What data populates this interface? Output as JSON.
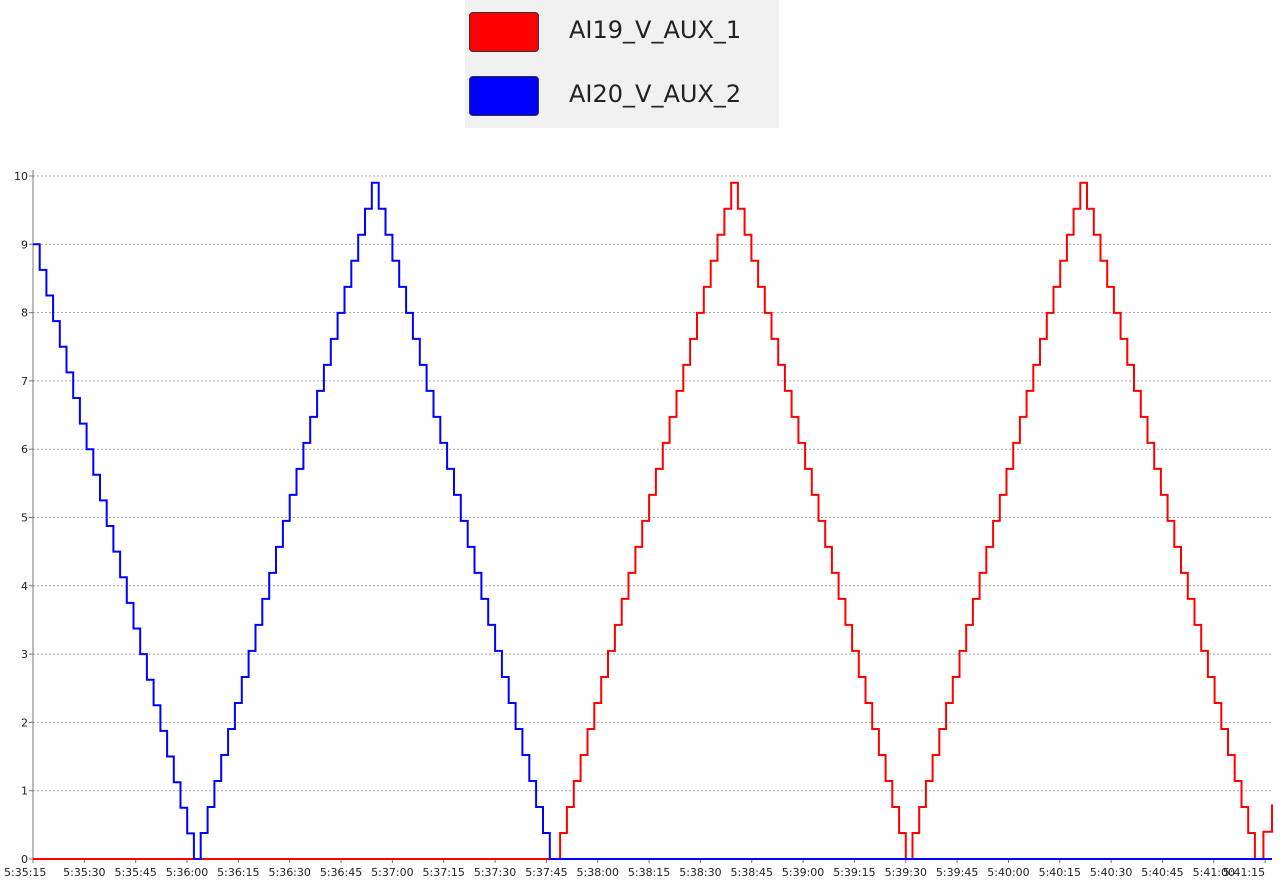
{
  "legend": {
    "items": [
      {
        "label": "AI19_V_AUX_1",
        "color": "#ff0000"
      },
      {
        "label": "AI20_V_AUX_2",
        "color": "#0000ff"
      }
    ]
  },
  "chart_data": {
    "type": "line",
    "title": "",
    "xlabel": "",
    "ylabel": "",
    "ylim": [
      0,
      10
    ],
    "xlim": [
      "5:35:15",
      "5:41:17"
    ],
    "grid": true,
    "legend_position": "top-center",
    "step": true,
    "yticks": [
      "0",
      "1",
      "2",
      "3",
      "4",
      "5",
      "6",
      "7",
      "8",
      "9",
      "10"
    ],
    "xticks": [
      "5:35:15",
      "5:35:30",
      "5:35:45",
      "5:36:00",
      "5:36:15",
      "5:36:30",
      "5:36:45",
      "5:37:00",
      "5:37:15",
      "5:37:30",
      "5:37:45",
      "5:38:00",
      "5:38:15",
      "5:38:30",
      "5:38:45",
      "5:39:00",
      "5:39:15",
      "5:39:30",
      "5:39:45",
      "5:40:00",
      "5:40:15",
      "5:40:30",
      "5:40:45",
      "5:41:00",
      "5:41:15"
    ],
    "series": [
      {
        "name": "AI19_V_AUX_1",
        "color": "#ff0000",
        "x": [
          "5:35:15",
          "5:37:47",
          "5:38:39",
          "5:39:30",
          "5:40:21",
          "5:41:12",
          "5:41:17"
        ],
        "values": [
          0,
          0,
          9.9,
          0,
          9.9,
          0,
          0.8
        ]
      },
      {
        "name": "AI20_V_AUX_2",
        "color": "#0000ff",
        "x": [
          "5:35:15",
          "5:36:02",
          "5:36:54",
          "5:37:46",
          "5:41:17"
        ],
        "values": [
          9.0,
          0,
          9.9,
          0,
          0
        ]
      }
    ]
  }
}
